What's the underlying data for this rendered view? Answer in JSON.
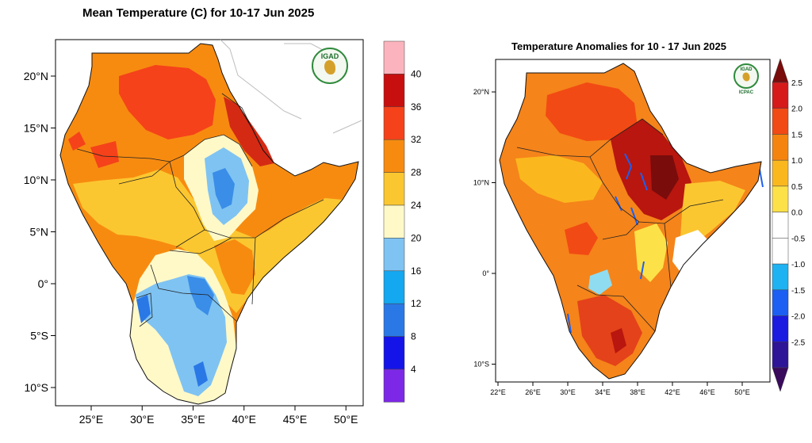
{
  "left_map": {
    "title": "Mean Temperature (C) for 10-17 Jun 2025",
    "logo_text": "IGAD",
    "lat_ticks": [
      {
        "value": 20,
        "label": "20°N"
      },
      {
        "value": 15,
        "label": "15°N"
      },
      {
        "value": 10,
        "label": "10°N"
      },
      {
        "value": 5,
        "label": "5°N"
      },
      {
        "value": 0,
        "label": "0°"
      },
      {
        "value": -5,
        "label": "5°S"
      },
      {
        "value": -10,
        "label": "10°S"
      }
    ],
    "lon_ticks": [
      {
        "value": 25,
        "label": "25°E"
      },
      {
        "value": 30,
        "label": "30°E"
      },
      {
        "value": 35,
        "label": "35°E"
      },
      {
        "value": 40,
        "label": "40°E"
      },
      {
        "value": 45,
        "label": "45°E"
      },
      {
        "value": 50,
        "label": "50°E"
      }
    ],
    "colorbar": {
      "labels": [
        "40",
        "36",
        "32",
        "28",
        "24",
        "20",
        "16",
        "12",
        "8",
        "4"
      ],
      "colors": [
        "#fbb4bd",
        "#c80f0f",
        "#f5421a",
        "#f78b10",
        "#fbc730",
        "#fff9c8",
        "#7fc3f2",
        "#14a8f0",
        "#2a78e6",
        "#1414e8",
        "#7d28e6"
      ]
    }
  },
  "right_map": {
    "title": "Temperature Anomalies for 10 - 17 Jun 2025",
    "logo_text": "IGAD",
    "logo_subtext": "ICPAC",
    "lat_ticks": [
      {
        "value": 20,
        "label": "20°N"
      },
      {
        "value": 10,
        "label": "10°N"
      },
      {
        "value": 0,
        "label": "0°"
      },
      {
        "value": -10,
        "label": "10°S"
      }
    ],
    "lon_ticks": [
      {
        "value": 22,
        "label": "22°E"
      },
      {
        "value": 26,
        "label": "26°E"
      },
      {
        "value": 30,
        "label": "30°E"
      },
      {
        "value": 34,
        "label": "34°E"
      },
      {
        "value": 38,
        "label": "38°E"
      },
      {
        "value": 42,
        "label": "42°E"
      },
      {
        "value": 46,
        "label": "46°E"
      },
      {
        "value": 50,
        "label": "50°E"
      }
    ],
    "colorbar": {
      "labels": [
        "2.5",
        "2.0",
        "1.5",
        "1.0",
        "0.5",
        "0.0",
        "-0.5",
        "-1.0",
        "-1.5",
        "-2.0",
        "-2.5"
      ],
      "colors": [
        "#7a0c0c",
        "#d61a1a",
        "#f24a14",
        "#f5840f",
        "#fbb81e",
        "#fde148",
        "#ffffff",
        "#ffffff",
        "#1eb2f2",
        "#1c5ff2",
        "#1a1ae0",
        "#2e1496",
        "#3a0a5c"
      ]
    }
  }
}
